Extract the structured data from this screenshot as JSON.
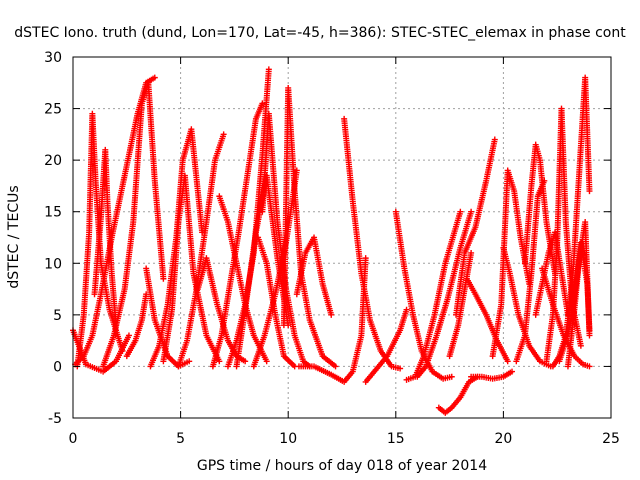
{
  "chart_data": {
    "type": "scatter",
    "title": "dSTEC Iono. truth (dund, Lon=170, Lat=-45, h=386): STEC-STEC_elemax in phase cont",
    "xlabel": "GPS time / hours of day 018 of year 2014",
    "ylabel": "dSTEC  / TECUs",
    "xlim": [
      0,
      25
    ],
    "ylim": [
      -5,
      30
    ],
    "xticks": [
      0,
      5,
      10,
      15,
      20,
      25
    ],
    "yticks": [
      -5,
      0,
      5,
      10,
      15,
      20,
      25,
      30
    ],
    "grid": true,
    "marker": "+",
    "color": "#ff0000",
    "series": [
      {
        "x": [
          0.0,
          0.6,
          1.4,
          2.0,
          2.6
        ],
        "y": [
          3.5,
          0.2,
          -0.5,
          0.5,
          3.0
        ]
      },
      {
        "x": [
          0.1,
          0.5,
          0.9,
          1.3,
          1.8,
          2.4,
          3.0,
          3.4,
          3.8
        ],
        "y": [
          0.2,
          1.0,
          3.0,
          7.0,
          12.5,
          18.5,
          24.5,
          27.5,
          28.0
        ]
      },
      {
        "x": [
          0.2,
          0.5,
          0.75,
          0.9,
          1.05,
          1.3,
          1.7,
          2.3
        ],
        "y": [
          0.0,
          5.0,
          13.0,
          24.5,
          18.0,
          10.0,
          5.5,
          1.5
        ]
      },
      {
        "x": [
          1.0,
          1.3,
          1.5,
          1.6,
          1.8,
          2.0
        ],
        "y": [
          7.0,
          14.5,
          21.0,
          16.0,
          9.0,
          4.0
        ]
      },
      {
        "x": [
          1.4,
          1.9,
          2.4,
          2.8,
          3.2,
          3.5,
          3.8,
          4.2
        ],
        "y": [
          0.0,
          3.0,
          7.5,
          14.0,
          25.5,
          27.5,
          18.0,
          8.5
        ]
      },
      {
        "x": [
          2.5,
          2.9,
          3.2,
          3.4
        ],
        "y": [
          1.0,
          2.5,
          4.5,
          7.0
        ]
      },
      {
        "x": [
          3.4,
          3.8,
          4.4,
          4.9,
          5.4
        ],
        "y": [
          9.5,
          4.5,
          1.0,
          0.0,
          0.5
        ]
      },
      {
        "x": [
          3.6,
          4.0,
          4.4,
          4.8,
          5.1,
          5.5,
          6.0
        ],
        "y": [
          0.0,
          2.0,
          6.0,
          12.5,
          20.0,
          23.0,
          13.0
        ]
      },
      {
        "x": [
          4.2,
          4.6,
          4.9,
          5.2,
          5.6,
          6.2,
          6.8
        ],
        "y": [
          0.5,
          5.5,
          14.0,
          18.5,
          9.0,
          3.0,
          0.5
        ]
      },
      {
        "x": [
          4.9,
          5.3,
          5.7,
          6.2,
          6.6,
          7.0
        ],
        "y": [
          0.0,
          2.5,
          7.0,
          14.0,
          20.0,
          22.5
        ]
      },
      {
        "x": [
          5.8,
          6.2,
          6.7,
          7.2,
          7.6,
          8.0
        ],
        "y": [
          7.5,
          10.5,
          6.0,
          2.5,
          1.0,
          0.5
        ]
      },
      {
        "x": [
          6.5,
          6.9,
          7.3,
          7.7,
          8.1,
          8.5,
          8.8
        ],
        "y": [
          0.0,
          3.0,
          8.0,
          13.0,
          18.5,
          24.0,
          25.5
        ]
      },
      {
        "x": [
          6.8,
          7.2,
          7.6,
          8.0,
          8.4,
          9.0
        ],
        "y": [
          16.5,
          14.0,
          10.0,
          6.0,
          3.0,
          0.5
        ]
      },
      {
        "x": [
          7.2,
          7.6,
          8.0,
          8.4,
          8.8,
          9.1
        ],
        "y": [
          0.0,
          2.5,
          6.0,
          11.0,
          20.5,
          28.8
        ]
      },
      {
        "x": [
          8.8,
          9.1,
          9.5,
          9.9,
          10.3,
          10.7,
          11.0
        ],
        "y": [
          15.0,
          24.5,
          14.0,
          7.5,
          3.0,
          0.5,
          0.0
        ]
      },
      {
        "x": [
          7.6,
          8.0,
          8.5,
          9.0,
          9.5,
          10.0
        ],
        "y": [
          0.0,
          5.5,
          13.0,
          18.5,
          10.5,
          4.0
        ]
      },
      {
        "x": [
          8.6,
          9.0,
          9.4,
          9.8,
          10.3
        ],
        "y": [
          12.5,
          10.0,
          5.0,
          1.0,
          0.0
        ]
      },
      {
        "x": [
          9.8,
          10.0,
          10.3,
          10.6,
          11.0,
          11.6,
          12.2
        ],
        "y": [
          4.0,
          27.0,
          17.0,
          9.0,
          4.5,
          1.0,
          0.0
        ]
      },
      {
        "x": [
          8.4,
          8.9,
          9.4,
          9.9,
          10.4
        ],
        "y": [
          0.0,
          3.0,
          7.0,
          12.0,
          19.0
        ]
      },
      {
        "x": [
          10.4,
          10.8,
          11.2,
          11.6,
          12.0
        ],
        "y": [
          7.0,
          11.0,
          12.5,
          8.0,
          5.0
        ]
      },
      {
        "x": [
          10.5,
          11.2,
          12.0,
          12.6,
          13.0,
          13.4,
          13.6
        ],
        "y": [
          0.0,
          0.0,
          -0.8,
          -1.5,
          -0.5,
          3.0,
          10.5
        ]
      },
      {
        "x": [
          12.6,
          13.0,
          13.4,
          13.8,
          14.3,
          14.8,
          15.2
        ],
        "y": [
          24.0,
          16.0,
          9.0,
          4.5,
          1.5,
          0.0,
          -0.2
        ]
      },
      {
        "x": [
          13.6,
          14.0,
          14.6,
          15.2,
          15.5
        ],
        "y": [
          -1.5,
          -0.5,
          1.0,
          3.5,
          5.5
        ]
      },
      {
        "x": [
          15.0,
          15.4,
          15.8,
          16.2,
          16.7,
          17.2,
          17.6
        ],
        "y": [
          15.0,
          9.5,
          5.0,
          1.5,
          -0.5,
          -1.2,
          -1.0
        ]
      },
      {
        "x": [
          15.5,
          15.9,
          16.3,
          16.8,
          17.3,
          18.0
        ],
        "y": [
          -1.3,
          -1.0,
          1.0,
          5.0,
          10.0,
          15.0
        ]
      },
      {
        "x": [
          16.0,
          16.4,
          16.9,
          17.4,
          18.0,
          18.5
        ],
        "y": [
          -1.0,
          0.0,
          3.0,
          6.5,
          11.5,
          15.0
        ]
      },
      {
        "x": [
          17.0,
          17.3,
          17.6,
          18.0,
          18.4,
          18.8
        ],
        "y": [
          -4.0,
          -4.5,
          -4.0,
          -3.0,
          -1.5,
          -1.0
        ]
      },
      {
        "x": [
          17.5,
          17.9,
          18.2,
          18.5
        ],
        "y": [
          1.0,
          4.0,
          7.5,
          11.0
        ]
      },
      {
        "x": [
          18.5,
          19.0,
          19.5,
          20.0,
          20.4
        ],
        "y": [
          -1.0,
          -1.0,
          -1.2,
          -1.0,
          -0.5
        ]
      },
      {
        "x": [
          17.8,
          18.2,
          18.7,
          19.2,
          19.6
        ],
        "y": [
          5.0,
          11.0,
          13.5,
          18.0,
          22.0
        ]
      },
      {
        "x": [
          18.3,
          18.7,
          19.2,
          19.7,
          20.2
        ],
        "y": [
          8.5,
          7.0,
          5.0,
          2.5,
          0.5
        ]
      },
      {
        "x": [
          19.5,
          19.9,
          20.2,
          20.5,
          20.8,
          21.2
        ],
        "y": [
          1.0,
          6.0,
          19.0,
          17.0,
          12.5,
          8.0
        ]
      },
      {
        "x": [
          20.0,
          20.3,
          20.7,
          21.2,
          21.7,
          22.2
        ],
        "y": [
          11.5,
          9.0,
          5.0,
          2.0,
          0.5,
          0.0
        ]
      },
      {
        "x": [
          20.6,
          21.0,
          21.3,
          21.6,
          21.9
        ],
        "y": [
          0.5,
          3.0,
          9.0,
          16.5,
          18.0
        ]
      },
      {
        "x": [
          21.0,
          21.3,
          21.5,
          21.7,
          22.0,
          22.4
        ],
        "y": [
          10.0,
          17.5,
          21.5,
          20.0,
          14.0,
          9.0
        ]
      },
      {
        "x": [
          21.5,
          21.8,
          22.1,
          22.4,
          22.7,
          23.0
        ],
        "y": [
          5.0,
          8.0,
          11.0,
          13.0,
          9.0,
          5.0
        ]
      },
      {
        "x": [
          22.0,
          22.3,
          22.5,
          22.7,
          22.9,
          23.2,
          23.6
        ],
        "y": [
          0.5,
          5.0,
          12.0,
          25.0,
          14.0,
          6.0,
          2.0
        ]
      },
      {
        "x": [
          22.3,
          22.6,
          22.9,
          23.2,
          23.5,
          23.8,
          24.0
        ],
        "y": [
          0.0,
          1.0,
          3.0,
          8.0,
          18.0,
          28.0,
          17.0
        ]
      },
      {
        "x": [
          22.6,
          22.9,
          23.2,
          23.5,
          23.8,
          24.0
        ],
        "y": [
          0.5,
          2.5,
          5.0,
          10.0,
          14.0,
          3.0
        ]
      },
      {
        "x": [
          21.8,
          22.3,
          22.8,
          23.3,
          23.7,
          24.0
        ],
        "y": [
          9.5,
          6.0,
          3.0,
          1.0,
          0.2,
          0.0
        ]
      },
      {
        "x": [
          23.0,
          23.3,
          23.6,
          23.9,
          24.0
        ],
        "y": [
          0.0,
          5.5,
          12.0,
          8.0,
          3.5
        ]
      }
    ]
  }
}
